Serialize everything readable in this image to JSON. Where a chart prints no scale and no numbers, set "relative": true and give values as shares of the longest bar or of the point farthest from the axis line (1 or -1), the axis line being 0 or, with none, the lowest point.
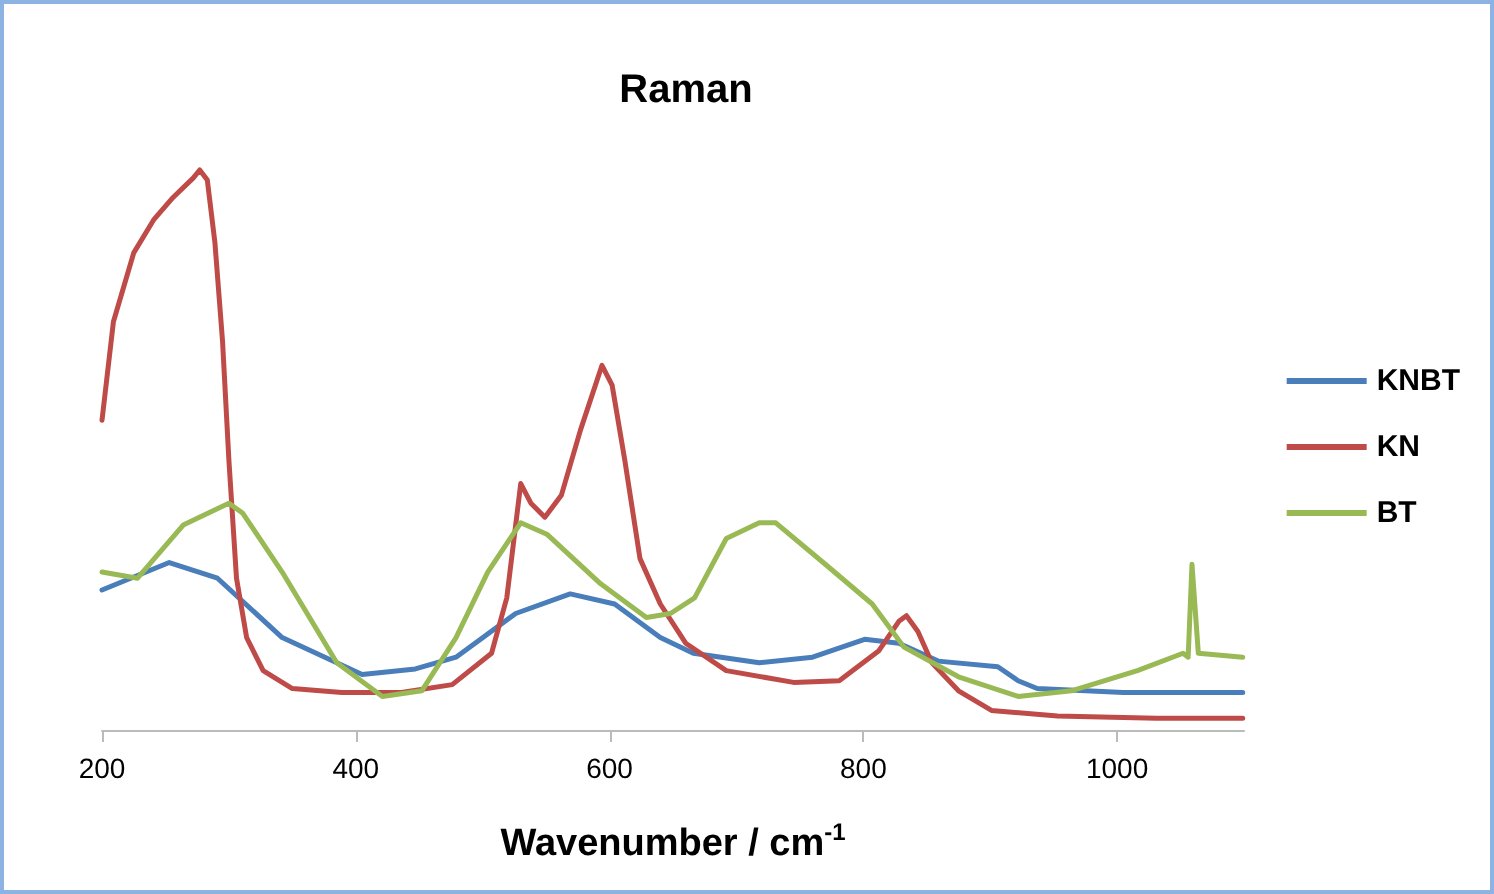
{
  "chart_data": {
    "type": "line",
    "title": "Raman",
    "xlabel": "Wavenumber / cm$^{-1}$",
    "relative": true,
    "xlim": [
      200,
      1100
    ],
    "xticks": [
      200,
      400,
      600,
      800,
      1000
    ],
    "grid": false,
    "legend": "right",
    "line_style": "solid",
    "series": [
      {
        "name": "KNBT",
        "color": "#4a7ebb",
        "x": [
          200,
          253,
          291,
          342,
          405,
          447,
          479,
          526,
          569,
          604,
          640,
          666,
          718,
          760,
          801,
          828,
          859,
          906,
          922,
          937,
          1005,
          1099
        ],
        "values": [
          0.25,
          0.299,
          0.271,
          0.165,
          0.099,
          0.109,
          0.13,
          0.208,
          0.243,
          0.225,
          0.165,
          0.137,
          0.12,
          0.13,
          0.162,
          0.155,
          0.123,
          0.113,
          0.088,
          0.074,
          0.067,
          0.067
        ]
      },
      {
        "name": "KN",
        "color": "#be4b48",
        "x": [
          200,
          209,
          225,
          241,
          256,
          272,
          277,
          283,
          289,
          295,
          300,
          306,
          314,
          327,
          350,
          389,
          436,
          476,
          507,
          519,
          530,
          538,
          549,
          562,
          577,
          594,
          602,
          612,
          624,
          640,
          660,
          692,
          745,
          781,
          812,
          828,
          834,
          843,
          854,
          875,
          901,
          953,
          1031,
          1099
        ],
        "values": [
          0.553,
          0.729,
          0.852,
          0.912,
          0.951,
          0.986,
          1.0,
          0.982,
          0.87,
          0.694,
          0.482,
          0.271,
          0.165,
          0.106,
          0.074,
          0.067,
          0.067,
          0.081,
          0.137,
          0.236,
          0.44,
          0.405,
          0.38,
          0.419,
          0.535,
          0.651,
          0.616,
          0.482,
          0.306,
          0.225,
          0.155,
          0.106,
          0.085,
          0.088,
          0.141,
          0.194,
          0.204,
          0.176,
          0.12,
          0.07,
          0.035,
          0.025,
          0.021,
          0.021
        ]
      },
      {
        "name": "BT",
        "color": "#98b954",
        "x": [
          200,
          228,
          264,
          300,
          311,
          342,
          385,
          421,
          452,
          479,
          504,
          530,
          551,
          593,
          629,
          648,
          667,
          692,
          718,
          731,
          770,
          807,
          832,
          875,
          922,
          964,
          1016,
          1052,
          1056,
          1059,
          1064,
          1099
        ],
        "values": [
          0.282,
          0.271,
          0.366,
          0.405,
          0.387,
          0.282,
          0.12,
          0.06,
          0.07,
          0.165,
          0.282,
          0.37,
          0.349,
          0.261,
          0.201,
          0.208,
          0.236,
          0.342,
          0.37,
          0.37,
          0.296,
          0.225,
          0.148,
          0.095,
          0.06,
          0.07,
          0.106,
          0.137,
          0.13,
          0.296,
          0.137,
          0.13
        ]
      }
    ]
  }
}
